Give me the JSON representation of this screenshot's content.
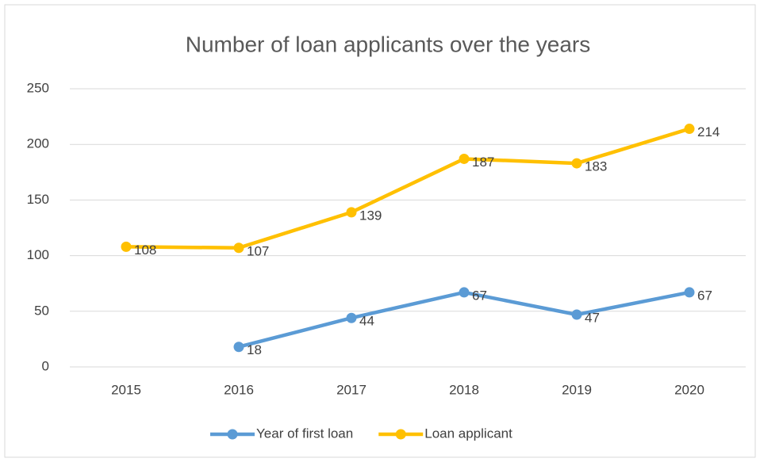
{
  "chart_data": {
    "type": "line",
    "title": "Number of loan applicants over the years",
    "categories": [
      "2015",
      "2016",
      "2017",
      "2018",
      "2019",
      "2020"
    ],
    "series": [
      {
        "name": "Year of first loan",
        "color": "#5b9bd5",
        "values": [
          null,
          18,
          44,
          67,
          47,
          67
        ]
      },
      {
        "name": "Loan applicant",
        "color": "#ffc000",
        "values": [
          108,
          107,
          139,
          187,
          183,
          214
        ]
      }
    ],
    "ylim": [
      0,
      250
    ],
    "yticks": [
      0,
      50,
      100,
      150,
      200,
      250
    ],
    "grid": true,
    "legend": "bottom"
  }
}
